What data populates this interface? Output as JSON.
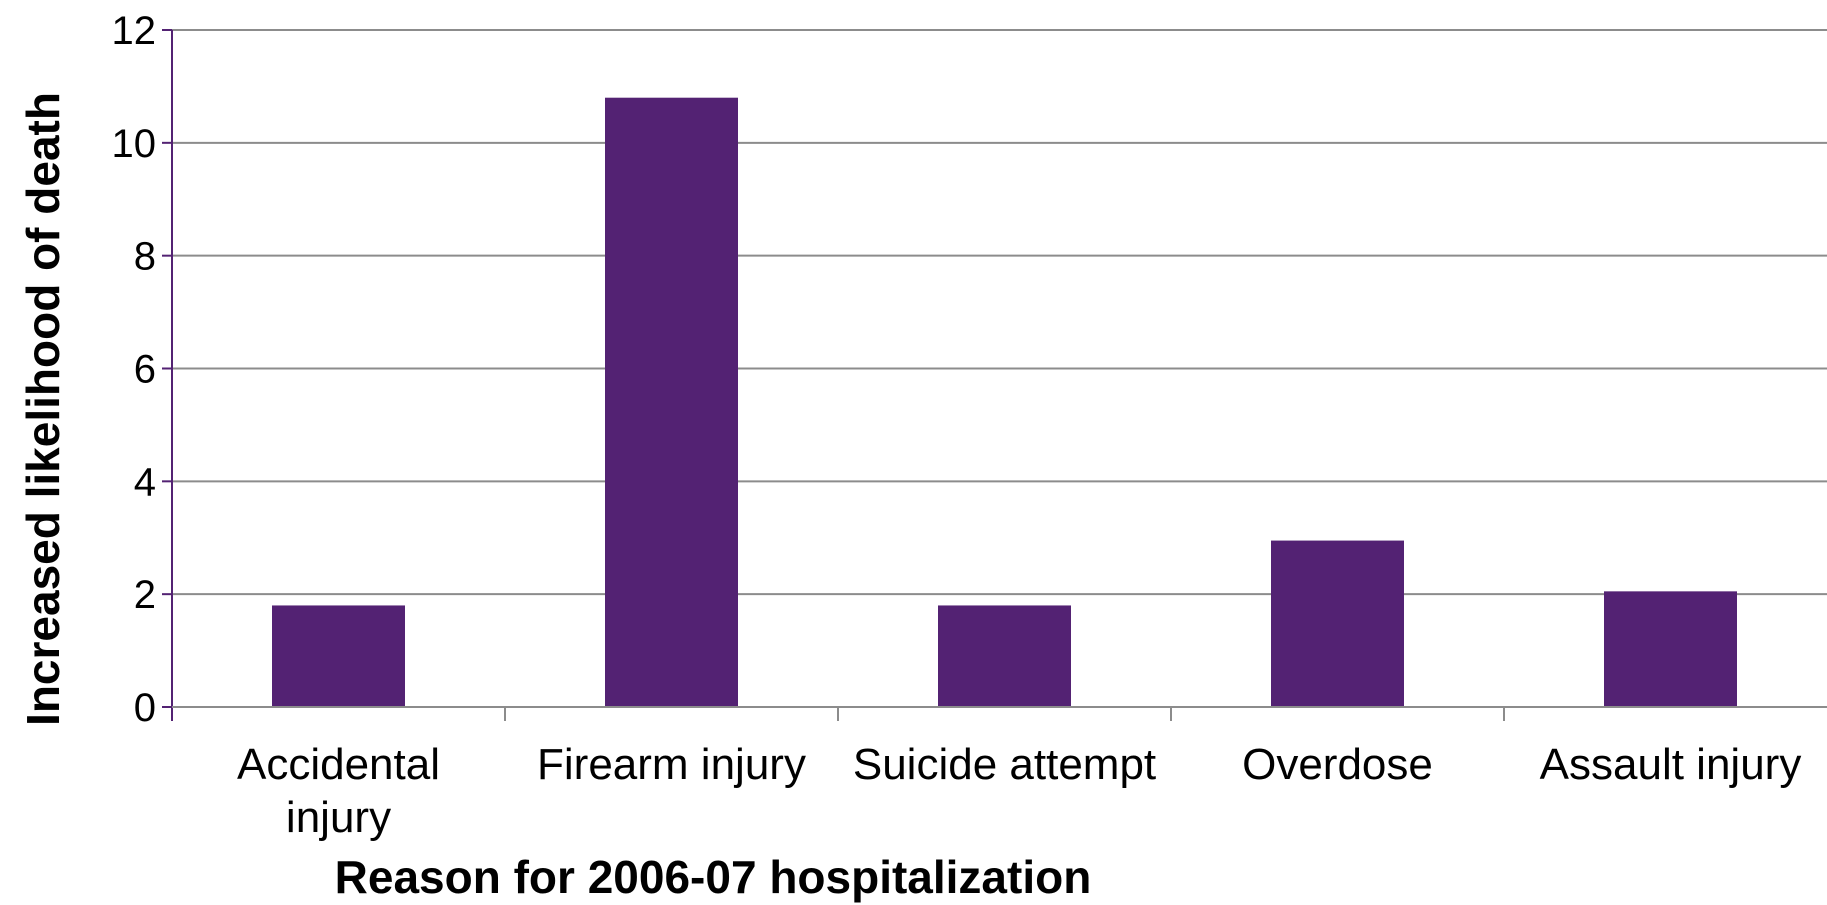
{
  "chart_data": {
    "type": "bar",
    "title": "",
    "xlabel": "Reason for 2006-07 hospitalization",
    "ylabel": "Increased likelihood of death",
    "categories": [
      [
        "Accidental",
        "injury"
      ],
      [
        "Firearm injury"
      ],
      [
        "Suicide attempt"
      ],
      [
        "Overdose"
      ],
      [
        "Assault injury"
      ]
    ],
    "values": [
      1.8,
      10.8,
      1.8,
      2.95,
      2.05
    ],
    "ylim": [
      0,
      12
    ],
    "yticks": [
      0,
      2,
      4,
      6,
      8,
      10,
      12
    ],
    "grid": true,
    "legend": "none",
    "colors": {
      "bar": "#532273",
      "gridline": "#8c8c8c",
      "y_axis": "#532273",
      "x_axis": "#8c8c8c"
    }
  }
}
